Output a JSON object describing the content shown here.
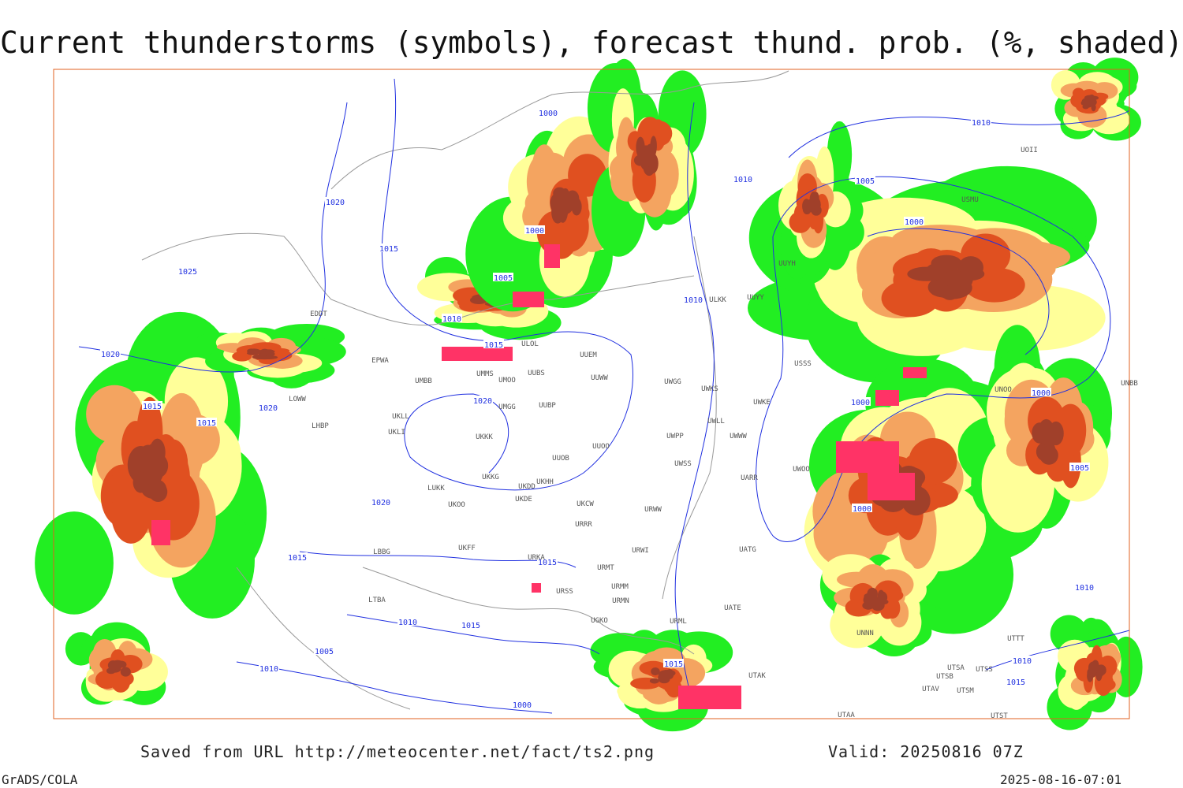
{
  "title": "Current thunderstorms (symbols), forecast thund. prob. (%, shaded)",
  "footer": {
    "source": "Saved from URL http://meteocenter.net/fact/ts2.png",
    "valid": "Valid: 20250816 07Z",
    "software": "GrADS/COLA",
    "timestamp": "2025-08-16-07:01"
  },
  "isobar_labels": [
    "1000",
    "1020",
    "1015",
    "1025",
    "1000",
    "1005",
    "1010",
    "1015",
    "1020",
    "1015",
    "1015",
    "1020",
    "1020",
    "1020",
    "1015",
    "1015",
    "1010",
    "1015",
    "1005",
    "1010",
    "1000",
    "1015",
    "1010",
    "1010",
    "1010",
    "1005",
    "1000",
    "1000",
    "1000",
    "1000",
    "1005",
    "1010",
    "1010",
    "1015"
  ],
  "stations": [
    "ULOL",
    "UUEM",
    "UMMS",
    "UUBS",
    "UUWW",
    "UMOO",
    "UMBB",
    "UMGG",
    "UUBP",
    "UKLL",
    "UKLI",
    "UKKK",
    "UUOO",
    "UUOB",
    "UKHH",
    "UKKG",
    "UKDD",
    "UKDE",
    "LUKK",
    "UKOO",
    "UKCW",
    "URRR",
    "UKFF",
    "URKA",
    "URSS",
    "UWGG",
    "UWKS",
    "UWKE",
    "UWLL",
    "UWPP",
    "UWWW",
    "UWSS",
    "UARR",
    "URWW",
    "URWI",
    "UATG",
    "URMT",
    "URMM",
    "URMN",
    "UGKO",
    "URML",
    "UATE",
    "UTAK",
    "UTAV",
    "UTSB",
    "UTSA",
    "UTSS",
    "UTSM",
    "UTAA",
    "ULKK",
    "UUYY",
    "EPWA",
    "EDDT",
    "LOWW",
    "LHBP",
    "LBBG",
    "LTBA",
    "UUYH",
    "USSS",
    "UWOO",
    "UNNN",
    "USMU",
    "UOII",
    "UNBB",
    "UNOO",
    "UTTT",
    "UTST"
  ]
}
